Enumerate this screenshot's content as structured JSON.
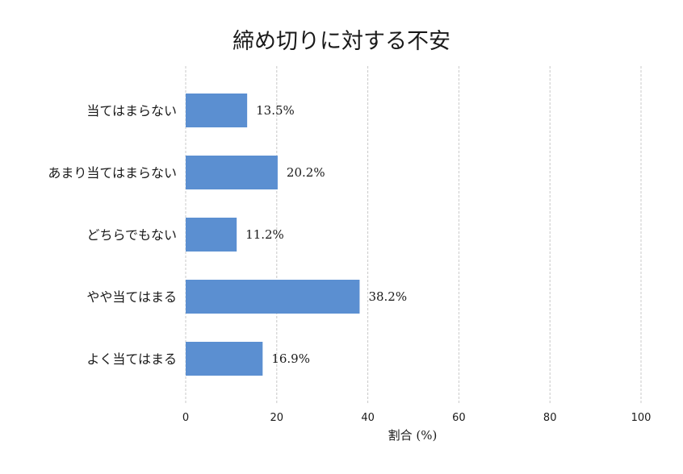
{
  "chart_data": {
    "type": "bar",
    "orientation": "horizontal",
    "title": "締め切りに対する不安",
    "xlabel": "割合 (%)",
    "ylabel": "",
    "categories": [
      "当てはまらない",
      "あまり当てはまらない",
      "どちらでもない",
      "やや当てはまる",
      "よく当てはまる"
    ],
    "values": [
      13.5,
      20.2,
      11.2,
      38.2,
      16.9
    ],
    "value_labels": [
      "13.5%",
      "20.2%",
      "11.2%",
      "38.2%",
      "16.9%"
    ],
    "xlim": [
      0,
      100
    ],
    "xticks": [
      0,
      20,
      40,
      60,
      80,
      100
    ],
    "xtick_labels": [
      "0",
      "20",
      "40",
      "60",
      "80",
      "100"
    ],
    "grid": true,
    "bar_color": "#5b8fd1"
  }
}
